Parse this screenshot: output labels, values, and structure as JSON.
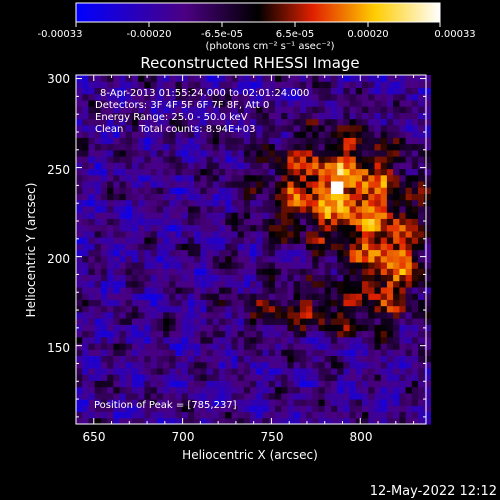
{
  "chart_data": {
    "type": "heatmap",
    "title": "Reconstructed RHESSI Image",
    "xlabel": "Heliocentric X (arcsec)",
    "ylabel": "Heliocentric Y (arcsec)",
    "xlim": [
      640,
      837
    ],
    "ylim": [
      106,
      302
    ],
    "xticks": [
      "650",
      "700",
      "750",
      "800"
    ],
    "yticks": [
      "150",
      "200",
      "250",
      "300"
    ],
    "colorbar": {
      "ticks": [
        "-0.00033",
        "-0.00020",
        "-6.5e-05",
        "6.5e-05",
        "0.00020",
        "0.00033"
      ],
      "unit_label": "(photons cm⁻² s⁻¹ asec⁻²)",
      "range": [
        -0.00033,
        0.00033
      ],
      "colors": [
        "#0000ff",
        "#4b0082",
        "#000000",
        "#ff4500",
        "#ffd700",
        "#ffffff"
      ]
    },
    "info_lines": [
      "8-Apr-2013 01:55:24.000 to 02:01:24.000",
      "Detectors: 3F 4F 5F 6F 7F 8F, Att 0",
      "Energy Range: 25.0 - 50.0 keV",
      "Clean     Total counts: 8.94E+03"
    ],
    "peak_label": "Position of Peak = [785,237]",
    "peak": {
      "x": 785,
      "y": 237
    }
  },
  "footer": {
    "timestamp": "12-May-2022 12:12"
  }
}
